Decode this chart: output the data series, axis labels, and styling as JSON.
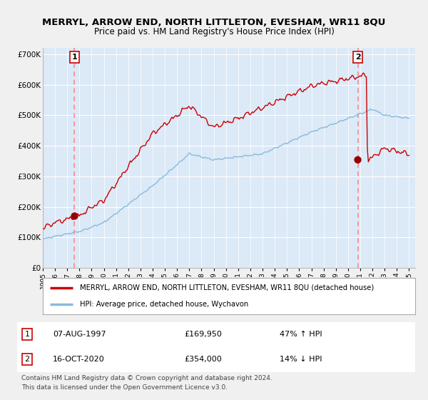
{
  "title": "MERRYL, ARROW END, NORTH LITTLETON, EVESHAM, WR11 8QU",
  "subtitle": "Price paid vs. HM Land Registry's House Price Index (HPI)",
  "xlim_start": 1995.0,
  "xlim_end": 2025.5,
  "ylim_min": 0,
  "ylim_max": 720000,
  "yticks": [
    0,
    100000,
    200000,
    300000,
    400000,
    500000,
    600000,
    700000
  ],
  "ytick_labels": [
    "£0",
    "£100K",
    "£200K",
    "£300K",
    "£400K",
    "£500K",
    "£600K",
    "£700K"
  ],
  "plot_bg_color": "#dce9f7",
  "fig_bg_color": "#f0f0f0",
  "grid_color": "#ffffff",
  "red_line_color": "#cc0000",
  "blue_line_color": "#88bbdd",
  "marker_color": "#990000",
  "dashed_line_color": "#ff8888",
  "sale1_x": 1997.6,
  "sale1_y": 169950,
  "sale1_label": "1",
  "sale2_x": 2020.8,
  "sale2_y": 354000,
  "sale2_label": "2",
  "legend_red_label": "MERRYL, ARROW END, NORTH LITTLETON, EVESHAM, WR11 8QU (detached house)",
  "legend_blue_label": "HPI: Average price, detached house, Wychavon",
  "table_row1_num": "1",
  "table_row1_date": "07-AUG-1997",
  "table_row1_price": "£169,950",
  "table_row1_hpi": "47% ↑ HPI",
  "table_row2_num": "2",
  "table_row2_date": "16-OCT-2020",
  "table_row2_price": "£354,000",
  "table_row2_hpi": "14% ↓ HPI",
  "footer": "Contains HM Land Registry data © Crown copyright and database right 2024.\nThis data is licensed under the Open Government Licence v3.0."
}
